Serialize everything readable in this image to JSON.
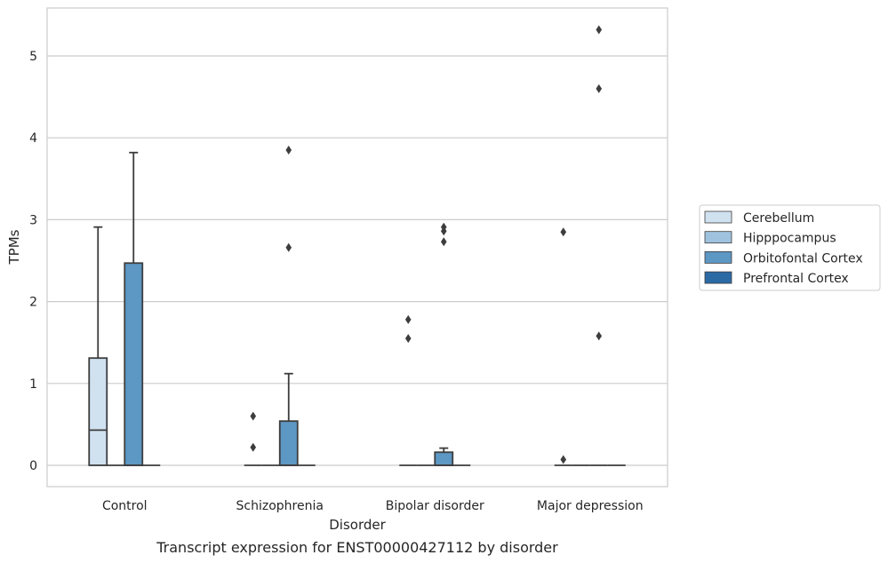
{
  "caption": "Transcript expression for ENST00000427112 by disorder",
  "chart_data": {
    "type": "box",
    "xlabel": "Disorder",
    "ylabel": "TPMs",
    "categories": [
      "Control",
      "Schizophrenia",
      "Bipolar disorder",
      "Major depression"
    ],
    "yticks": [
      "0",
      "1",
      "2",
      "3",
      "4",
      "5"
    ],
    "ylim": [
      -0.25,
      5.6
    ],
    "grid": "horizontal",
    "legend_position": "right",
    "series": [
      {
        "name": "Cerebellum",
        "color": "#d0e1f0",
        "boxes": [
          {
            "q1": 0,
            "median": 0.43,
            "q3": 1.31,
            "whisker_low": 0,
            "whisker_high": 2.91,
            "outliers": []
          },
          {
            "q1": 0,
            "median": 0,
            "q3": 0,
            "whisker_low": 0,
            "whisker_high": 0,
            "outliers": [
              0.6,
              0.22
            ]
          },
          {
            "q1": 0,
            "median": 0,
            "q3": 0,
            "whisker_low": 0,
            "whisker_high": 0,
            "outliers": [
              1.78,
              1.55
            ]
          },
          {
            "q1": 0,
            "median": 0,
            "q3": 0,
            "whisker_low": 0,
            "whisker_high": 0,
            "outliers": [
              2.85,
              0.07
            ]
          }
        ]
      },
      {
        "name": "Hipppocampus",
        "color": "#9fc3de",
        "boxes": [
          {
            "q1": 0,
            "median": 0,
            "q3": 0,
            "whisker_low": 0,
            "whisker_high": 0,
            "outliers": []
          },
          {
            "q1": 0,
            "median": 0,
            "q3": 0,
            "whisker_low": 0,
            "whisker_high": 0,
            "outliers": []
          },
          {
            "q1": 0,
            "median": 0,
            "q3": 0,
            "whisker_low": 0,
            "whisker_high": 0,
            "outliers": []
          },
          {
            "q1": 0,
            "median": 0,
            "q3": 0,
            "whisker_low": 0,
            "whisker_high": 0,
            "outliers": []
          }
        ]
      },
      {
        "name": "Orbitofontal Cortex",
        "color": "#5d97c3",
        "boxes": [
          {
            "q1": 0,
            "median": 0,
            "q3": 2.47,
            "whisker_low": 0,
            "whisker_high": 3.82,
            "outliers": []
          },
          {
            "q1": 0,
            "median": 0,
            "q3": 0.54,
            "whisker_low": 0,
            "whisker_high": 1.12,
            "outliers": [
              3.85,
              2.66
            ]
          },
          {
            "q1": 0,
            "median": 0,
            "q3": 0.16,
            "whisker_low": 0,
            "whisker_high": 0.21,
            "outliers": [
              2.91,
              2.86,
              2.73
            ]
          },
          {
            "q1": 0,
            "median": 0,
            "q3": 0,
            "whisker_low": 0,
            "whisker_high": 0,
            "outliers": [
              5.32,
              4.6,
              1.58
            ]
          }
        ]
      },
      {
        "name": "Prefrontal Cortex",
        "color": "#2b6aa5",
        "boxes": [
          {
            "q1": 0,
            "median": 0,
            "q3": 0,
            "whisker_low": 0,
            "whisker_high": 0,
            "outliers": []
          },
          {
            "q1": 0,
            "median": 0,
            "q3": 0,
            "whisker_low": 0,
            "whisker_high": 0,
            "outliers": []
          },
          {
            "q1": 0,
            "median": 0,
            "q3": 0,
            "whisker_low": 0,
            "whisker_high": 0,
            "outliers": []
          },
          {
            "q1": 0,
            "median": 0,
            "q3": 0,
            "whisker_low": 0,
            "whisker_high": 0,
            "outliers": []
          }
        ]
      }
    ]
  }
}
